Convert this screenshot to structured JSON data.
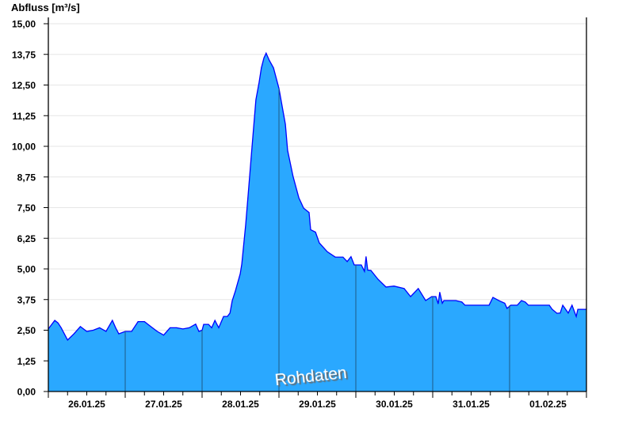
{
  "chart_data": {
    "type": "area",
    "title": "",
    "ylabel": "Abfluss [m³/s]",
    "xlabel": "",
    "annotation": "Rohdaten",
    "ylim": [
      0,
      15
    ],
    "xlim_hours": [
      0,
      168
    ],
    "yticks": [
      "0,00",
      "1,25",
      "2,50",
      "3,75",
      "5,00",
      "6,25",
      "7,50",
      "8,75",
      "10,00",
      "11,25",
      "12,50",
      "13,75",
      "15,00"
    ],
    "ytick_values": [
      0,
      1.25,
      2.5,
      3.75,
      5,
      6.25,
      7.5,
      8.75,
      10,
      11.25,
      12.5,
      13.75,
      15
    ],
    "xtick_labels": [
      "26.01.25",
      "27.01.25",
      "28.01.25",
      "29.01.25",
      "30.01.25",
      "31.01.25",
      "01.02.25"
    ],
    "grid": true,
    "colors": {
      "fill": "#2aa8ff",
      "line": "#0000ff",
      "midnight": "#1f5a84",
      "grid": "#e6e6e6"
    },
    "series": [
      {
        "name": "Abfluss",
        "x_hours_since_26_01_00": [
          0,
          2,
          3,
          4,
          6,
          8,
          10,
          12,
          14,
          16,
          18,
          20,
          21,
          22,
          24,
          26,
          28,
          30,
          32,
          34,
          36,
          38,
          40,
          42,
          44,
          46,
          47,
          48,
          48.5,
          50,
          51,
          52,
          53.2,
          54.7,
          55.9,
          56.7,
          57.4,
          58.4,
          59.9,
          60.4,
          61.6,
          62.3,
          63.3,
          64.1,
          64.8,
          65.8,
          66.5,
          67.3,
          68,
          69,
          70.3,
          72,
          74,
          74.7,
          76.4,
          78.2,
          79.7,
          81.4,
          81.9,
          83.4,
          84.6,
          87.1,
          89.6,
          92,
          93.3,
          94.5,
          95.5,
          97.7,
          98.7,
          99.2,
          99.7,
          100.7,
          102.9,
          105.4,
          107.9,
          111.1,
          113.1,
          115.5,
          117.8,
          119.7,
          121,
          121.7,
          122.2,
          123,
          123.5,
          127.2,
          129.1,
          130.1,
          137.6,
          138.8,
          140.8,
          142.5,
          143.2,
          144.4,
          146.4,
          147.7,
          148.9,
          149.9,
          156.4,
          157.3,
          158.8,
          159.8,
          160.6,
          162.3,
          163.5,
          164.8,
          165.3,
          168
        ],
        "values": [
          2.55,
          2.9,
          2.8,
          2.6,
          2.1,
          2.35,
          2.65,
          2.45,
          2.5,
          2.6,
          2.45,
          2.9,
          2.6,
          2.35,
          2.45,
          2.45,
          2.85,
          2.85,
          2.65,
          2.45,
          2.3,
          2.6,
          2.6,
          2.55,
          2.6,
          2.75,
          2.45,
          2.5,
          2.74,
          2.74,
          2.6,
          2.9,
          2.6,
          3.06,
          3.06,
          3.2,
          3.7,
          4.1,
          4.8,
          5.2,
          6.8,
          7.9,
          9.5,
          10.8,
          11.9,
          12.6,
          13.2,
          13.6,
          13.8,
          13.5,
          13.2,
          12.36,
          10.9,
          9.84,
          8.77,
          7.9,
          7.48,
          7.3,
          6.6,
          6.5,
          6.06,
          5.7,
          5.48,
          5.48,
          5.3,
          5.5,
          5.16,
          5.16,
          4.9,
          5.5,
          4.95,
          4.94,
          4.58,
          4.26,
          4.3,
          4.2,
          3.87,
          4.2,
          3.71,
          3.87,
          3.87,
          3.58,
          4.05,
          3.6,
          3.71,
          3.71,
          3.65,
          3.52,
          3.52,
          3.84,
          3.7,
          3.6,
          3.39,
          3.52,
          3.52,
          3.71,
          3.65,
          3.52,
          3.52,
          3.35,
          3.19,
          3.2,
          3.52,
          3.2,
          3.52,
          3.06,
          3.35,
          3.35
        ]
      }
    ]
  }
}
